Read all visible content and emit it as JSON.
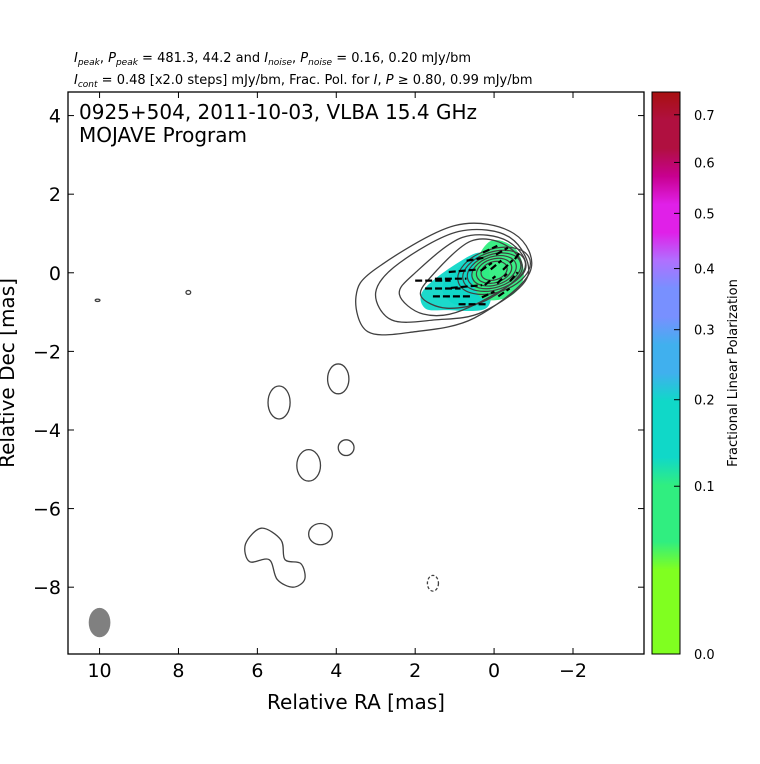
{
  "chart_data": {
    "type": "contour",
    "header": {
      "line1": {
        "parts": [
          {
            "t": "I",
            "s": "it"
          },
          {
            "t": "peak",
            "s": "sub"
          },
          {
            "t": ", "
          },
          {
            "t": "P",
            "s": "it"
          },
          {
            "t": "peak",
            "s": "sub"
          },
          {
            "t": " = 481.3, 44.2 and "
          },
          {
            "t": "I",
            "s": "it"
          },
          {
            "t": "noise",
            "s": "sub"
          },
          {
            "t": ", "
          },
          {
            "t": "P",
            "s": "it"
          },
          {
            "t": "noise",
            "s": "sub"
          },
          {
            "t": " = 0.16, 0.20 mJy/bm"
          }
        ]
      },
      "line2": {
        "parts": [
          {
            "t": "I",
            "s": "it"
          },
          {
            "t": "cont",
            "s": "sub"
          },
          {
            "t": " = 0.48 [x2.0 steps] mJy/bm, Frac. Pol. for "
          },
          {
            "t": "I",
            "s": "it"
          },
          {
            "t": ", "
          },
          {
            "t": "P",
            "s": "it"
          },
          {
            "t": " ≥  0.80, 0.99 mJy/bm"
          }
        ]
      }
    },
    "title_lines": [
      "0925+504, 2011-10-03, VLBA 15.4 GHz",
      "MOJAVE Program"
    ],
    "xlabel": "Relative RA [mas]",
    "ylabel": "Relative Dec [mas]",
    "xlim": [
      10.8,
      -3.8
    ],
    "ylim": [
      -9.7,
      4.6
    ],
    "xticks": [
      10,
      8,
      6,
      4,
      2,
      0,
      -2
    ],
    "xtick_labels": [
      "10",
      "8",
      "6",
      "4",
      "2",
      "0",
      "−2"
    ],
    "yticks": [
      4,
      2,
      0,
      -2,
      -4,
      -6,
      -8
    ],
    "ytick_labels": [
      "4",
      "2",
      "0",
      "−2",
      "−4",
      "−6",
      "−8"
    ],
    "colorbar": {
      "label": "Fractional Linear Polarization",
      "range": [
        0.0,
        0.75
      ],
      "ticks": [
        0.0,
        0.1,
        0.2,
        0.3,
        0.4,
        0.5,
        0.6,
        0.7
      ],
      "tick_labels": [
        "0.0",
        "0.1",
        "0.2",
        "0.3",
        "0.4",
        "0.5",
        "0.6",
        "0.7"
      ],
      "colors": [
        "#80ff20",
        "#30ee80",
        "#10d8c8",
        "#40b0ee",
        "#7890ff",
        "#b070ff",
        "#e020e8",
        "#c80090",
        "#b01040",
        "#a81010"
      ]
    },
    "beam": {
      "ra": 10.0,
      "dec": -8.9,
      "major_mas": 0.75,
      "minor_mas": 0.55,
      "color": "#808080"
    },
    "contour_color": "#404040",
    "core": {
      "ra": 0.0,
      "dec": 0.05
    },
    "core_contours": [
      {
        "rx": 0.95,
        "ry": 0.55,
        "rot": 18
      },
      {
        "rx": 0.82,
        "ry": 0.48,
        "rot": 18
      },
      {
        "rx": 0.7,
        "ry": 0.42,
        "rot": 18
      },
      {
        "rx": 0.58,
        "ry": 0.36,
        "rot": 18
      },
      {
        "rx": 0.46,
        "ry": 0.3,
        "rot": 18
      },
      {
        "rx": 0.34,
        "ry": 0.23,
        "rot": 18
      }
    ],
    "jet_contours": [
      [
        [
          1.0,
          1.2
        ],
        [
          3.0,
          0.1
        ],
        [
          3.5,
          -0.6
        ],
        [
          3.2,
          -1.5
        ],
        [
          2.0,
          -1.5
        ],
        [
          0.5,
          -1.15
        ],
        [
          -0.9,
          0.0
        ],
        [
          -0.5,
          1.0
        ]
      ],
      [
        [
          0.9,
          1.05
        ],
        [
          2.4,
          0.25
        ],
        [
          3.0,
          -0.5
        ],
        [
          2.6,
          -1.2
        ],
        [
          1.5,
          -1.2
        ],
        [
          0.3,
          -1.0
        ],
        [
          -0.85,
          -0.1
        ],
        [
          -0.4,
          0.9
        ]
      ],
      [
        [
          0.8,
          0.9
        ],
        [
          2.0,
          0.0
        ],
        [
          2.4,
          -0.55
        ],
        [
          1.8,
          -1.05
        ],
        [
          0.8,
          -0.95
        ],
        [
          -0.75,
          0.0
        ],
        [
          -0.35,
          0.8
        ]
      ],
      [
        [
          0.6,
          0.8
        ],
        [
          1.6,
          -0.1
        ],
        [
          1.85,
          -0.6
        ],
        [
          1.2,
          -0.9
        ],
        [
          0.2,
          -0.7
        ],
        [
          -0.7,
          0.05
        ],
        [
          -0.3,
          0.7
        ]
      ]
    ],
    "isolated_contours": [
      {
        "ra": 5.45,
        "dec": -3.3,
        "rx": 0.28,
        "ry": 0.42,
        "style": "solid"
      },
      {
        "ra": 3.95,
        "dec": -2.7,
        "rx": 0.27,
        "ry": 0.38,
        "style": "solid"
      },
      {
        "ra": 4.7,
        "dec": -4.9,
        "rx": 0.3,
        "ry": 0.4,
        "style": "solid"
      },
      {
        "ra": 3.75,
        "dec": -4.45,
        "rx": 0.2,
        "ry": 0.2,
        "style": "solid"
      },
      {
        "ra": 4.4,
        "dec": -6.65,
        "rx": 0.3,
        "ry": 0.27,
        "style": "solid"
      },
      {
        "ra": 1.55,
        "dec": -7.9,
        "rx": 0.14,
        "ry": 0.2,
        "style": "dashed"
      },
      {
        "ra": 10.05,
        "dec": -0.7,
        "rx": 0.06,
        "ry": 0.03,
        "style": "solid"
      },
      {
        "ra": 7.75,
        "dec": -0.5,
        "rx": 0.06,
        "ry": 0.05,
        "style": "solid"
      }
    ],
    "south_contour": [
      [
        5.9,
        -6.5
      ],
      [
        5.4,
        -6.8
      ],
      [
        5.3,
        -7.3
      ],
      [
        4.9,
        -7.4
      ],
      [
        4.8,
        -7.8
      ],
      [
        5.1,
        -8.0
      ],
      [
        5.5,
        -7.8
      ],
      [
        5.7,
        -7.3
      ],
      [
        6.2,
        -7.35
      ],
      [
        6.3,
        -6.9
      ]
    ],
    "polarization_regions": [
      {
        "poly": [
          [
            1.8,
            -0.45
          ],
          [
            1.0,
            0.2
          ],
          [
            0.3,
            0.5
          ],
          [
            0.1,
            -0.2
          ],
          [
            0.2,
            -0.9
          ],
          [
            1.2,
            -0.95
          ],
          [
            1.75,
            -0.9
          ]
        ],
        "frac": 0.2
      },
      {
        "poly": [
          [
            1.3,
            -0.3
          ],
          [
            0.5,
            0.4
          ],
          [
            0.25,
            0.0
          ],
          [
            0.35,
            -0.7
          ],
          [
            1.0,
            -0.8
          ]
        ],
        "frac": 0.17
      },
      {
        "poly": [
          [
            0.1,
            0.8
          ],
          [
            -0.55,
            0.6
          ],
          [
            -0.75,
            -0.1
          ],
          [
            -0.4,
            -0.6
          ],
          [
            0.3,
            -0.65
          ],
          [
            0.55,
            0.0
          ]
        ],
        "frac": 0.08
      }
    ],
    "evpa_ticks": [
      {
        "ra": 1.55,
        "dec": -0.2,
        "len": 0.9,
        "ang": 0
      },
      {
        "ra": 1.3,
        "dec": -0.4,
        "len": 0.9,
        "ang": 0
      },
      {
        "ra": 1.05,
        "dec": -0.6,
        "len": 1.0,
        "ang": 0
      },
      {
        "ra": 1.1,
        "dec": -0.15,
        "len": 0.8,
        "ang": 0
      },
      {
        "ra": 0.8,
        "dec": 0.05,
        "len": 0.7,
        "ang": 5
      },
      {
        "ra": 0.7,
        "dec": -0.35,
        "len": 0.8,
        "ang": 5
      },
      {
        "ra": 0.55,
        "dec": -0.8,
        "len": 0.7,
        "ang": 0
      },
      {
        "ra": 0.45,
        "dec": 0.35,
        "len": 0.5,
        "ang": 10
      },
      {
        "ra": 0.1,
        "dec": 0.6,
        "len": 0.4,
        "ang": 25
      },
      {
        "ra": -0.2,
        "dec": 0.55,
        "len": 0.35,
        "ang": 30
      },
      {
        "ra": 0.2,
        "dec": 0.15,
        "len": 0.35,
        "ang": 35
      },
      {
        "ra": -0.05,
        "dec": 0.2,
        "len": 0.35,
        "ang": 40
      },
      {
        "ra": -0.35,
        "dec": 0.2,
        "len": 0.35,
        "ang": 45
      },
      {
        "ra": 0.1,
        "dec": -0.2,
        "len": 0.35,
        "ang": 40
      },
      {
        "ra": -0.2,
        "dec": -0.15,
        "len": 0.35,
        "ang": 45
      },
      {
        "ra": -0.5,
        "dec": -0.1,
        "len": 0.3,
        "ang": 50
      },
      {
        "ra": 0.15,
        "dec": -0.55,
        "len": 0.35,
        "ang": 25
      },
      {
        "ra": -0.25,
        "dec": -0.5,
        "len": 0.35,
        "ang": 35
      },
      {
        "ra": -0.6,
        "dec": 0.45,
        "len": 0.25,
        "ang": 55
      }
    ]
  }
}
